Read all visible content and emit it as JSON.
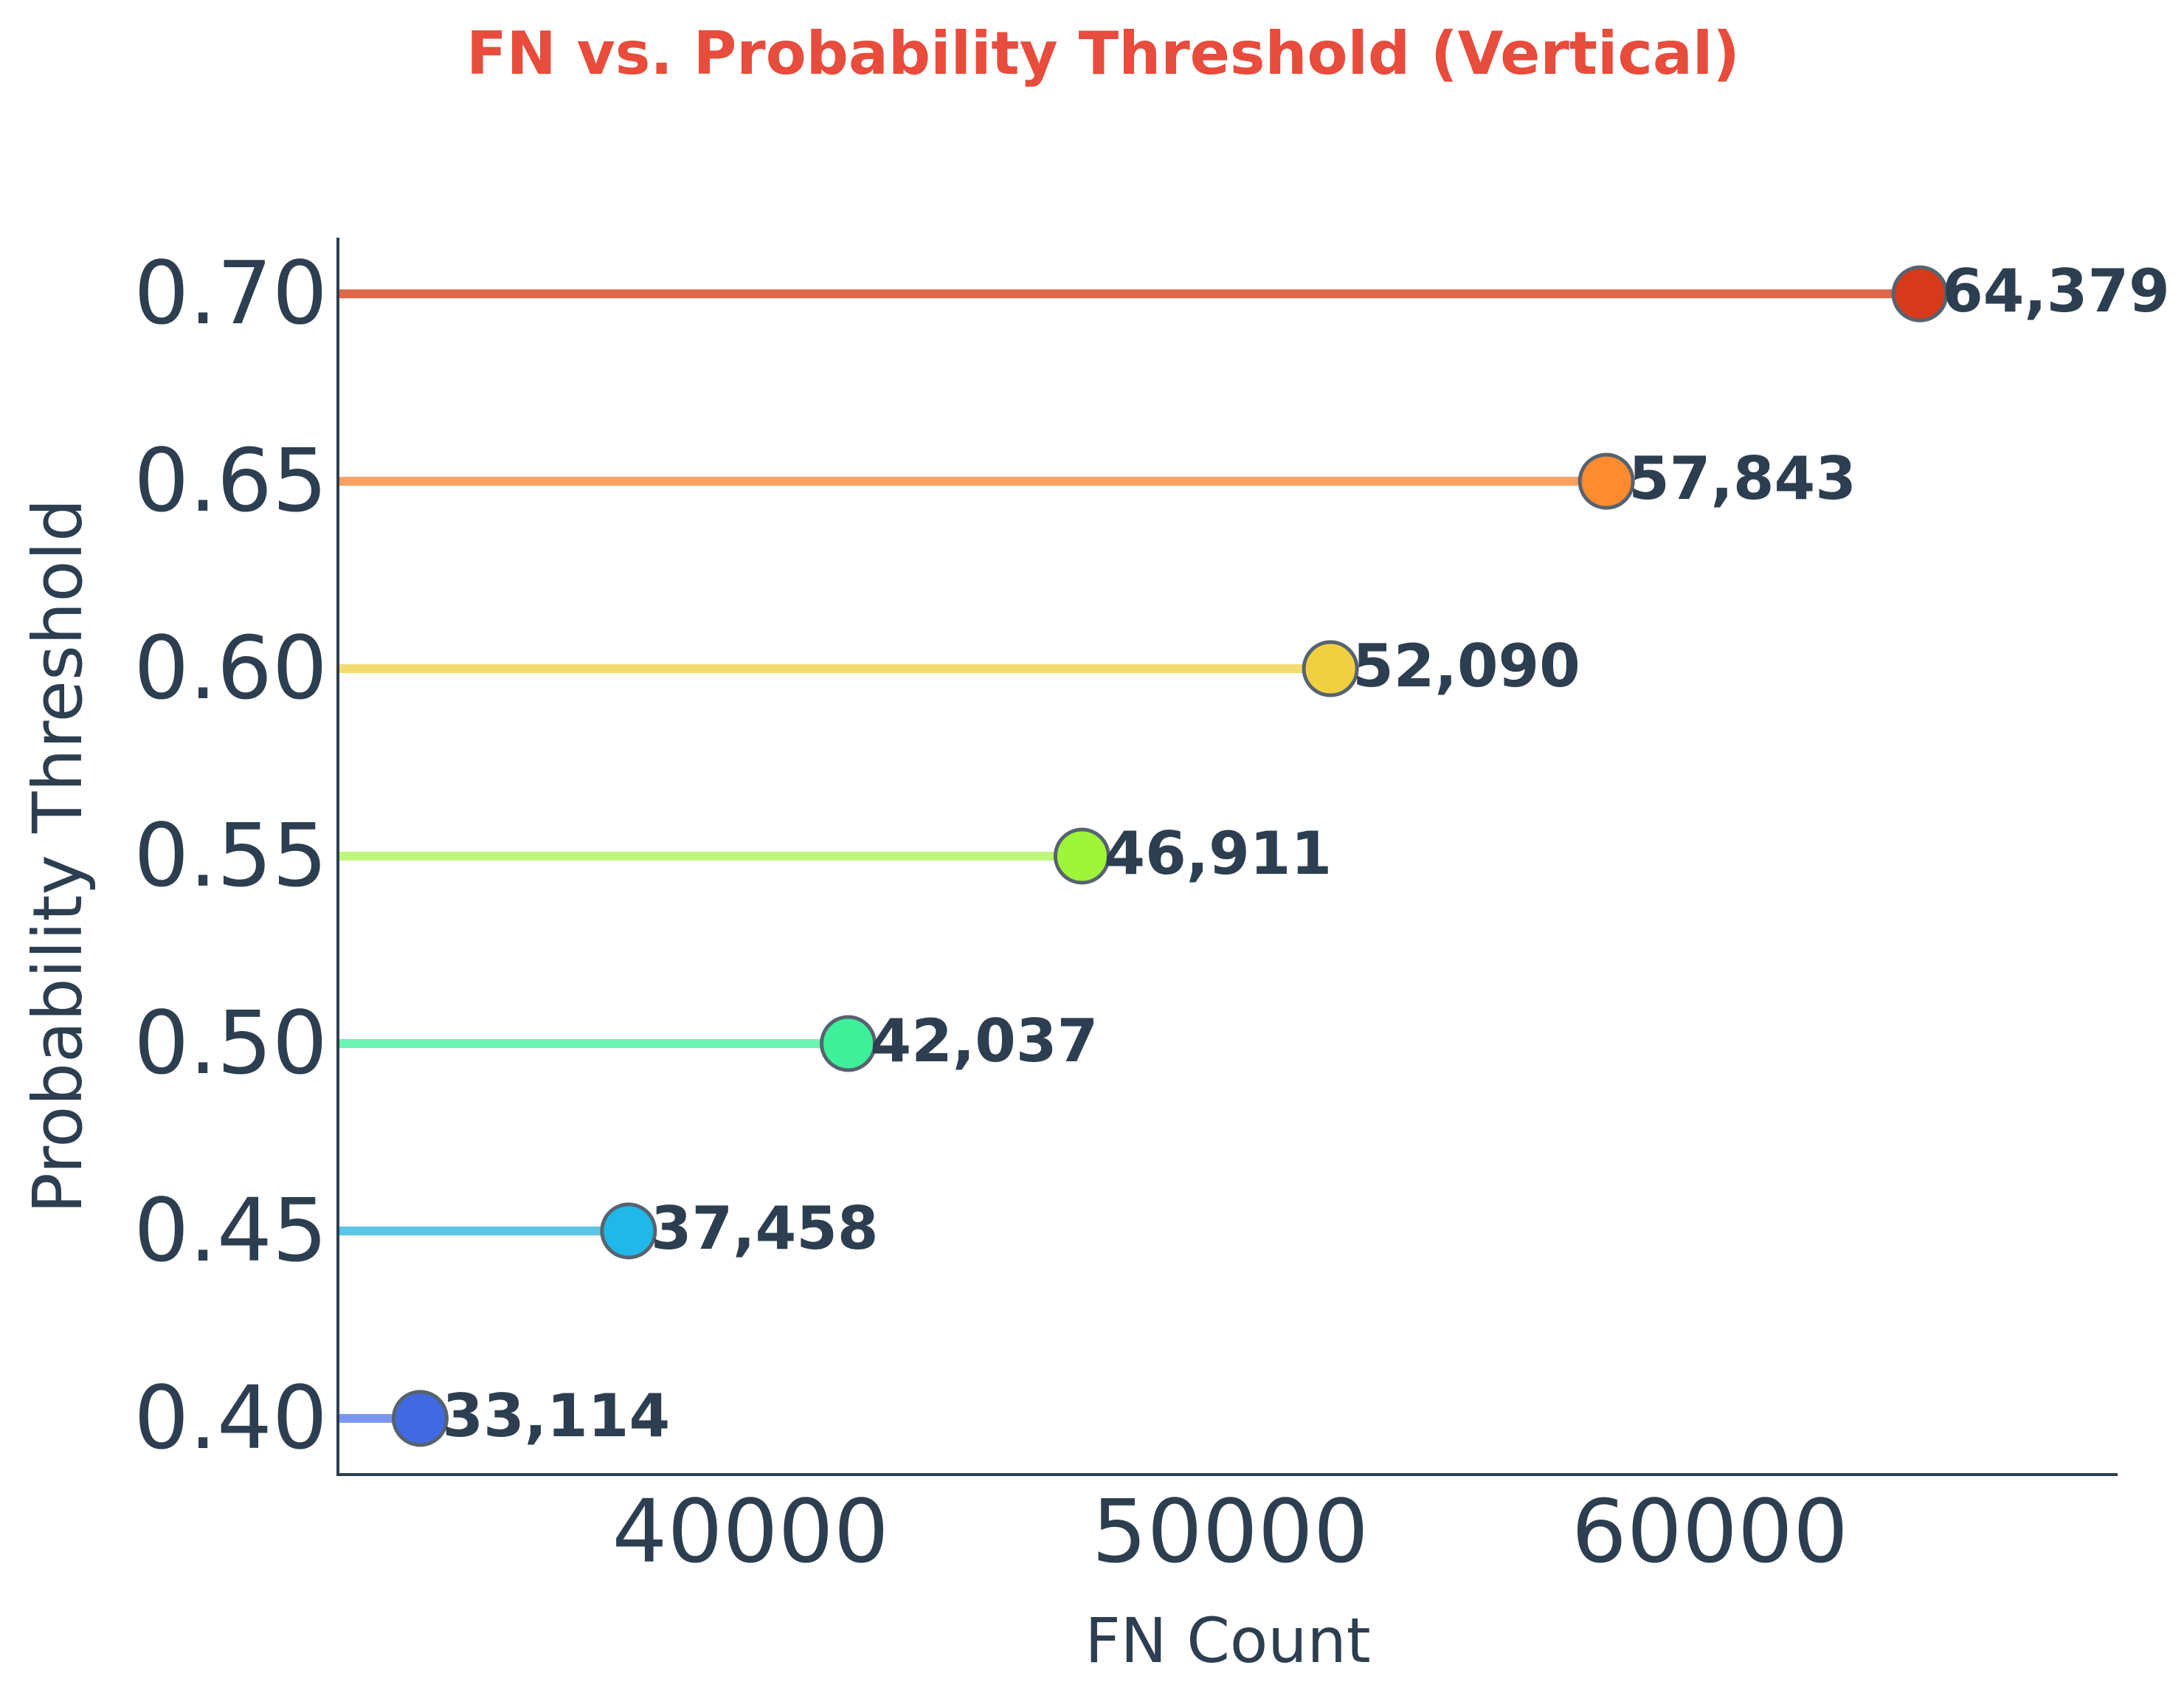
{
  "chart_data": {
    "type": "lollipop",
    "orientation": "horizontal",
    "title": "FN vs. Probability Threshold (Vertical)",
    "xlabel": "FN Count",
    "ylabel": "Probability Threshold",
    "xlim": [
      31400,
      68500
    ],
    "ylim": [
      0.385,
      0.715
    ],
    "x_ticks": [
      40000,
      50000,
      60000
    ],
    "x_tick_labels": [
      "40000",
      "50000",
      "60000"
    ],
    "y_tick_labels": [
      "0.40",
      "0.45",
      "0.50",
      "0.55",
      "0.60",
      "0.65",
      "0.70"
    ],
    "categories": [
      "0.40",
      "0.45",
      "0.50",
      "0.55",
      "0.60",
      "0.65",
      "0.70"
    ],
    "thresholds": [
      0.4,
      0.45,
      0.5,
      0.55,
      0.6,
      0.65,
      0.7
    ],
    "values": [
      33114,
      37458,
      42037,
      46911,
      52090,
      57843,
      64379
    ],
    "data_labels": [
      "33,114",
      "37,458",
      "42,037",
      "46,911",
      "52,090",
      "57,843",
      "64,379"
    ],
    "colors": [
      "#4169e1",
      "#1fb8e8",
      "#3ef09a",
      "#9ef53a",
      "#f0d040",
      "#ff8a30",
      "#d63a1a"
    ],
    "stem_colors": [
      "#7b95f0",
      "#5cc6e6",
      "#6af4b0",
      "#bef77a",
      "#f2dc70",
      "#f8a060",
      "#e06848"
    ],
    "grid": false,
    "legend": "none"
  }
}
